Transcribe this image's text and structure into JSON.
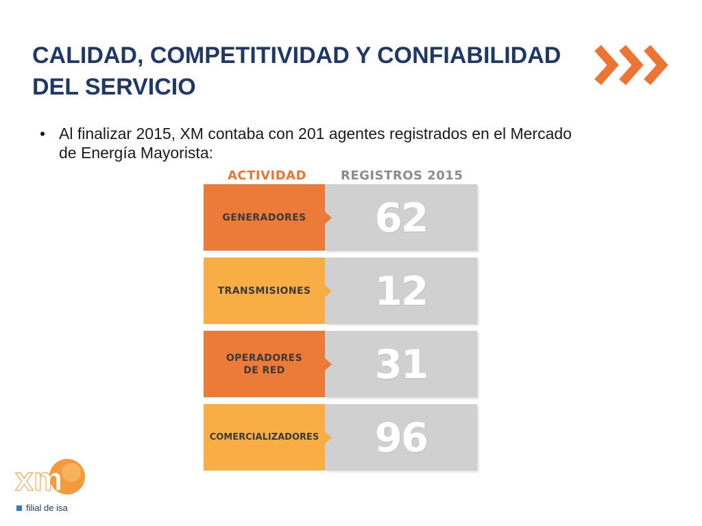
{
  "title": {
    "line1": "CALIDAD, COMPETITIVIDAD Y CONFIABILIDAD",
    "line2": "DEL SERVICIO"
  },
  "bullet": {
    "marker": "•",
    "text": "Al finalizar 2015, XM contaba con 201 agentes registrados en el Mercado de Energía Mayorista:"
  },
  "infographic": {
    "header_activity": "ACTIVIDAD",
    "header_registros": "REGISTROS 2015",
    "rows": [
      {
        "label": "GENERADORES",
        "value": "62"
      },
      {
        "label": "TRANSMISIONES",
        "value": "12"
      },
      {
        "label": "OPERADORES DE RED",
        "value": "31"
      },
      {
        "label": "COMERCIALIZADORES",
        "value": "96"
      }
    ]
  },
  "logo": {
    "wordmark": "xm",
    "tagline": "filial de isa"
  },
  "colors": {
    "title": "#1f3864",
    "orange_dark": "#ec7b3a",
    "orange_light": "#f8ae45",
    "value_box": "#d0d0d0"
  },
  "icons": {
    "decoration": "triple-chevron-right-icon"
  }
}
